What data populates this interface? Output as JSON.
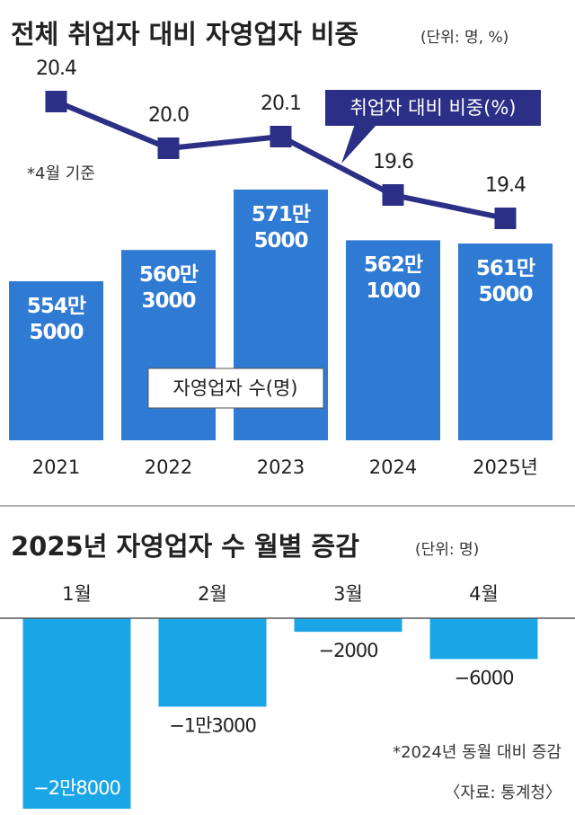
{
  "chart_data": [
    {
      "type": "bar",
      "title": "전체 취업자 대비 자영업자 비중",
      "subtitle": "(단위: 명, %)",
      "note": "*4월 기준",
      "categories": [
        "2021",
        "2022",
        "2023",
        "2024",
        "2025년"
      ],
      "series": [
        {
          "name": "자영업자 수(명)",
          "color": "#2f7ad3",
          "values": [
            5545000,
            5603000,
            5715000,
            5621000,
            5615000
          ],
          "value_labels": [
            "554만\n5000",
            "560만\n3000",
            "571만\n5000",
            "562만\n1000",
            "561만\n5000"
          ]
        },
        {
          "name": "취업자 대비 비중(%)",
          "type": "line",
          "axis": "y2",
          "color": "#2b2f86",
          "values": [
            20.4,
            20.0,
            20.1,
            19.6,
            19.4
          ],
          "value_labels": [
            "20.4",
            "20.0",
            "20.1",
            "19.6",
            "19.4"
          ]
        }
      ],
      "ylim": [
        5250000,
        5900000
      ],
      "y2lim": [
        17.5,
        20.5
      ]
    },
    {
      "type": "bar",
      "title": "2025년 자영업자 수 월별 증감",
      "subtitle": "(단위: 명)",
      "note": "*2024년 동월 대비 증감",
      "source": "〈자료: 통계청〉",
      "categories": [
        "1월",
        "2월",
        "3월",
        "4월"
      ],
      "values": [
        -28000,
        -13000,
        -2000,
        -6000
      ],
      "value_labels": [
        "−2만8000",
        "−1만3000",
        "−2000",
        "−6000"
      ],
      "color": "#1aa6e6",
      "ylim": [
        -28000,
        0
      ]
    }
  ]
}
